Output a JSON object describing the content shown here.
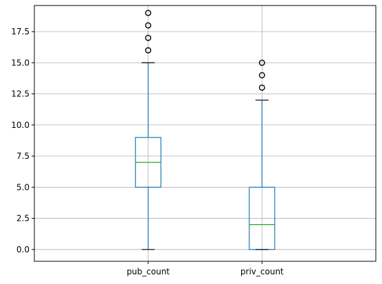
{
  "chart_data": {
    "type": "box",
    "title": "",
    "xlabel": "",
    "ylabel": "",
    "ylim": [
      -0.95,
      19.6
    ],
    "yticks": [
      0.0,
      2.5,
      5.0,
      7.5,
      10.0,
      12.5,
      15.0,
      17.5
    ],
    "ytick_labels": [
      "0.0",
      "2.5",
      "5.0",
      "7.5",
      "10.0",
      "12.5",
      "15.0",
      "17.5"
    ],
    "grid": true,
    "categories": [
      "pub_count",
      "priv_count"
    ],
    "series": [
      {
        "category": "pub_count",
        "whisker_low": 0,
        "q1": 5,
        "median": 7,
        "q3": 9,
        "whisker_high": 15,
        "outliers": [
          16,
          17,
          18,
          19
        ]
      },
      {
        "category": "priv_count",
        "whisker_low": 0,
        "q1": 0,
        "median": 2,
        "q3": 5,
        "whisker_high": 12,
        "outliers": [
          13,
          14,
          15
        ]
      }
    ],
    "colors": {
      "box": "#1f77b4",
      "median": "#2ca02c",
      "whisker_cap": "#000000",
      "outlier": "#000000",
      "grid": "#b0b0b0"
    }
  }
}
